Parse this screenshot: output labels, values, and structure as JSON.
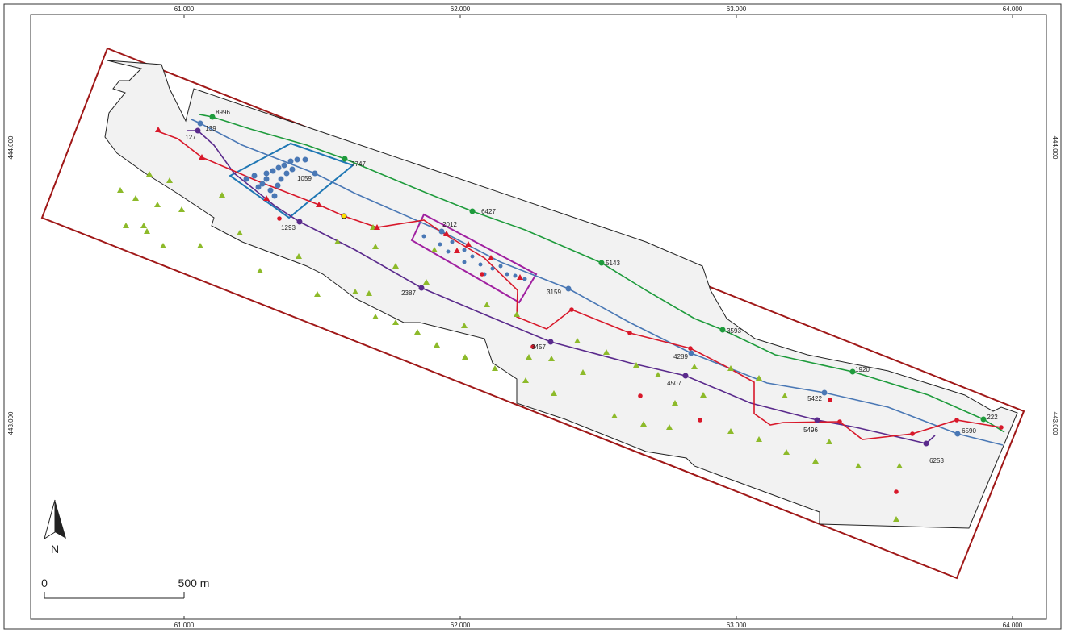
{
  "grid_labels": {
    "top": [
      "61.000",
      "62.000",
      "63.000",
      "64.000"
    ],
    "bottom": [
      "61.000",
      "62.000",
      "63.000",
      "64.000"
    ],
    "left": [
      "444.000",
      "443.000"
    ],
    "right": [
      "444.000",
      "443.000"
    ]
  },
  "point_labels": [
    "8996",
    "139",
    "127",
    "7747",
    "1059",
    "1293",
    "2012",
    "6427",
    "5143",
    "3159",
    "2387",
    "3457",
    "4289",
    "4507",
    "3593",
    "1920",
    "5422",
    "5496",
    "6590",
    "222",
    "6253"
  ],
  "scale_bar": {
    "start": "0",
    "end": "500 m"
  },
  "north_arrow": "N"
}
